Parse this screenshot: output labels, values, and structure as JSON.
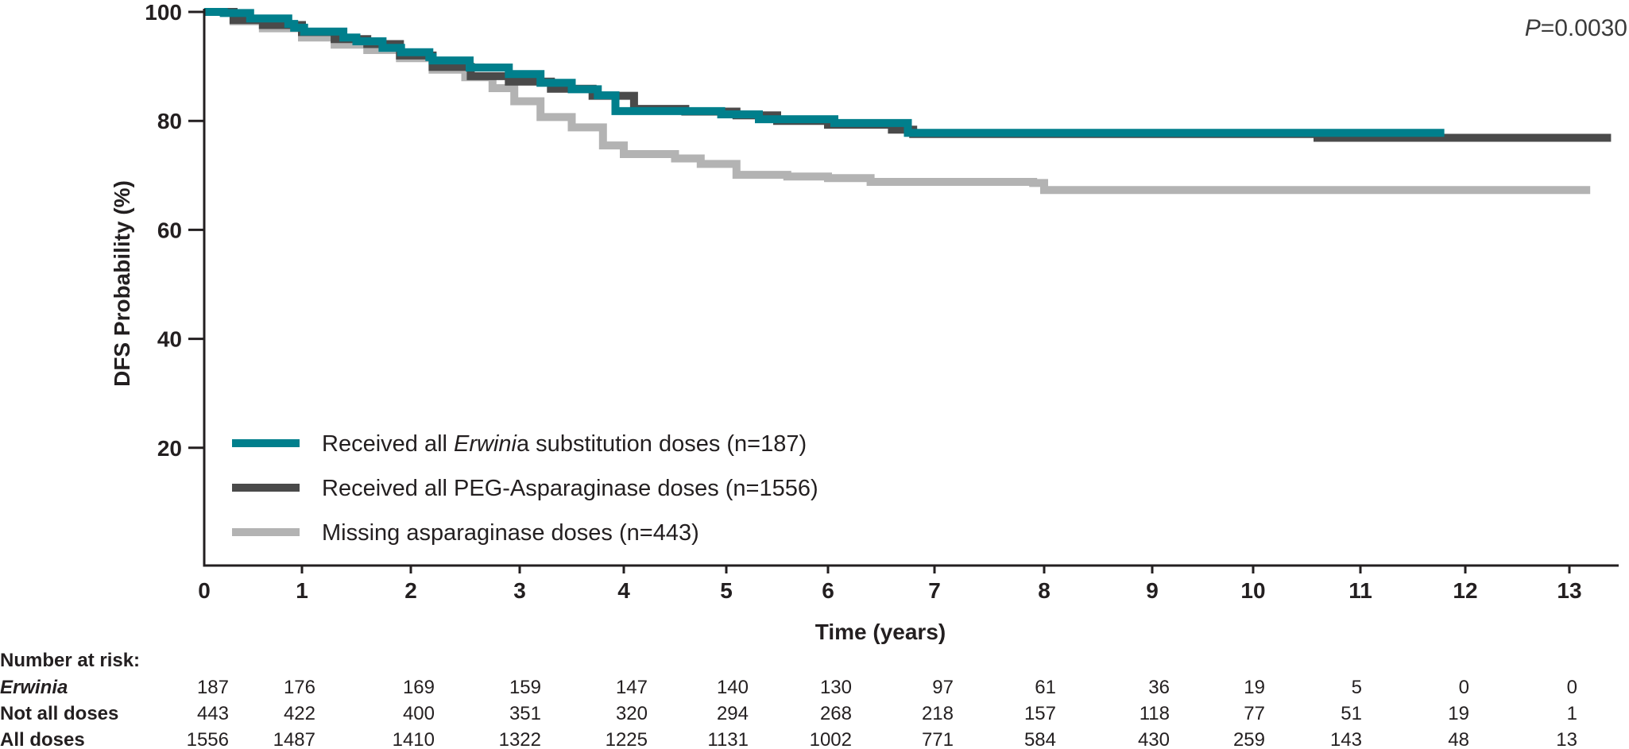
{
  "chart_data": {
    "type": "line",
    "subtype": "kaplan-meier",
    "title": "",
    "xlabel": "Time (years)",
    "ylabel": "DFS Probability (%)",
    "xlim": [
      0,
      13.4
    ],
    "ylim": [
      0,
      100
    ],
    "x_ticks": [
      0,
      1,
      2,
      3,
      4,
      5,
      6,
      7,
      8,
      9,
      10,
      11,
      12,
      13
    ],
    "y_ticks": [
      20,
      40,
      60,
      80,
      100
    ],
    "grid": false,
    "legend_position": "lower-left inside plot",
    "annotation": {
      "p_label": "P",
      "p_value": "=0.0030"
    },
    "series": [
      {
        "name": "Received all Erwinia substitution doses (n=187)",
        "label_pre": "Received all ",
        "label_italic": "Erwini",
        "label_post": "a substitution doses (n=187)",
        "color": "#007F8C",
        "points": [
          [
            0,
            100
          ],
          [
            0.2,
            99.8
          ],
          [
            0.47,
            98.8
          ],
          [
            0.86,
            97.8
          ],
          [
            0.92,
            97.1
          ],
          [
            1.02,
            96.4
          ],
          [
            1.38,
            95.3
          ],
          [
            1.5,
            94.6
          ],
          [
            1.74,
            93.4
          ],
          [
            1.91,
            92.6
          ],
          [
            2.17,
            91.7
          ],
          [
            2.2,
            91.1
          ],
          [
            2.54,
            89.8
          ],
          [
            2.9,
            88.6
          ],
          [
            3.2,
            87.0
          ],
          [
            3.5,
            85.8
          ],
          [
            3.75,
            84.7
          ],
          [
            3.92,
            81.8
          ],
          [
            4.95,
            81.2
          ],
          [
            5.32,
            80.3
          ],
          [
            6.06,
            79.6
          ],
          [
            6.75,
            77.8
          ],
          [
            11.8,
            77.8
          ]
        ]
      },
      {
        "name": "Received all PEG-Asparaginase doses (n=1556)",
        "label_pre": "Received all PEG-Asparaginase doses (n=1556)",
        "label_italic": "",
        "label_post": "",
        "color": "#4A4A4A",
        "points": [
          [
            0,
            100
          ],
          [
            0.3,
            98.5
          ],
          [
            0.6,
            97.6
          ],
          [
            1.0,
            96.3
          ],
          [
            1.3,
            95.0
          ],
          [
            1.6,
            94.1
          ],
          [
            1.9,
            92.0
          ],
          [
            2.2,
            89.9
          ],
          [
            2.55,
            88.2
          ],
          [
            2.9,
            87.2
          ],
          [
            3.3,
            85.9
          ],
          [
            3.7,
            84.6
          ],
          [
            4.1,
            82.2
          ],
          [
            4.6,
            81.7
          ],
          [
            5.1,
            81.0
          ],
          [
            5.5,
            80.0
          ],
          [
            6.0,
            79.3
          ],
          [
            6.6,
            78.4
          ],
          [
            6.8,
            77.6
          ],
          [
            9.5,
            77.6
          ],
          [
            10.6,
            76.9
          ],
          [
            13.4,
            76.9
          ]
        ]
      },
      {
        "name": "Missing asparaginase doses (n=443)",
        "label_pre": "Missing asparaginase doses (n=443)",
        "label_italic": "",
        "label_post": "",
        "color": "#B3B3B3",
        "points": [
          [
            0,
            100
          ],
          [
            0.3,
            98.3
          ],
          [
            0.6,
            97.0
          ],
          [
            1.0,
            95.3
          ],
          [
            1.3,
            94.0
          ],
          [
            1.6,
            93.0
          ],
          [
            1.9,
            91.5
          ],
          [
            2.2,
            89.4
          ],
          [
            2.5,
            88.0
          ],
          [
            2.75,
            86.0
          ],
          [
            2.95,
            83.6
          ],
          [
            3.2,
            80.7
          ],
          [
            3.5,
            78.8
          ],
          [
            3.8,
            75.5
          ],
          [
            4.0,
            73.9
          ],
          [
            4.5,
            73.1
          ],
          [
            4.75,
            72.1
          ],
          [
            5.1,
            70.1
          ],
          [
            5.6,
            69.8
          ],
          [
            6.0,
            69.5
          ],
          [
            6.4,
            68.8
          ],
          [
            7.9,
            68.6
          ],
          [
            8.0,
            67.3
          ],
          [
            13.2,
            67.3
          ]
        ]
      }
    ]
  },
  "axes": {
    "y_tick_labels": [
      "100",
      "80",
      "60",
      "40",
      "20"
    ],
    "x_tick_labels": [
      "0",
      "1",
      "2",
      "3",
      "4",
      "5",
      "6",
      "7",
      "8",
      "9",
      "10",
      "11",
      "12",
      "13"
    ],
    "xlabel": "Time (years)",
    "ylabel": "DFS Probability (%)"
  },
  "annotation": {
    "p_italic": "P",
    "p_rest": "=0.0030"
  },
  "risk_table": {
    "header": "Number at risk:",
    "rows": [
      {
        "label": "Erwinia",
        "italic": true,
        "values": [
          "187",
          "176",
          "169",
          "159",
          "147",
          "140",
          "130",
          "97",
          "61",
          "36",
          "19",
          "5",
          "0",
          "0"
        ]
      },
      {
        "label": "Not all doses",
        "italic": false,
        "values": [
          "443",
          "422",
          "400",
          "351",
          "320",
          "294",
          "268",
          "218",
          "157",
          "118",
          "77",
          "51",
          "19",
          "1"
        ]
      },
      {
        "label": "All doses",
        "italic": false,
        "values": [
          "1556",
          "1487",
          "1410",
          "1322",
          "1225",
          "1131",
          "1002",
          "771",
          "584",
          "430",
          "259",
          "143",
          "48",
          "13"
        ]
      }
    ]
  }
}
